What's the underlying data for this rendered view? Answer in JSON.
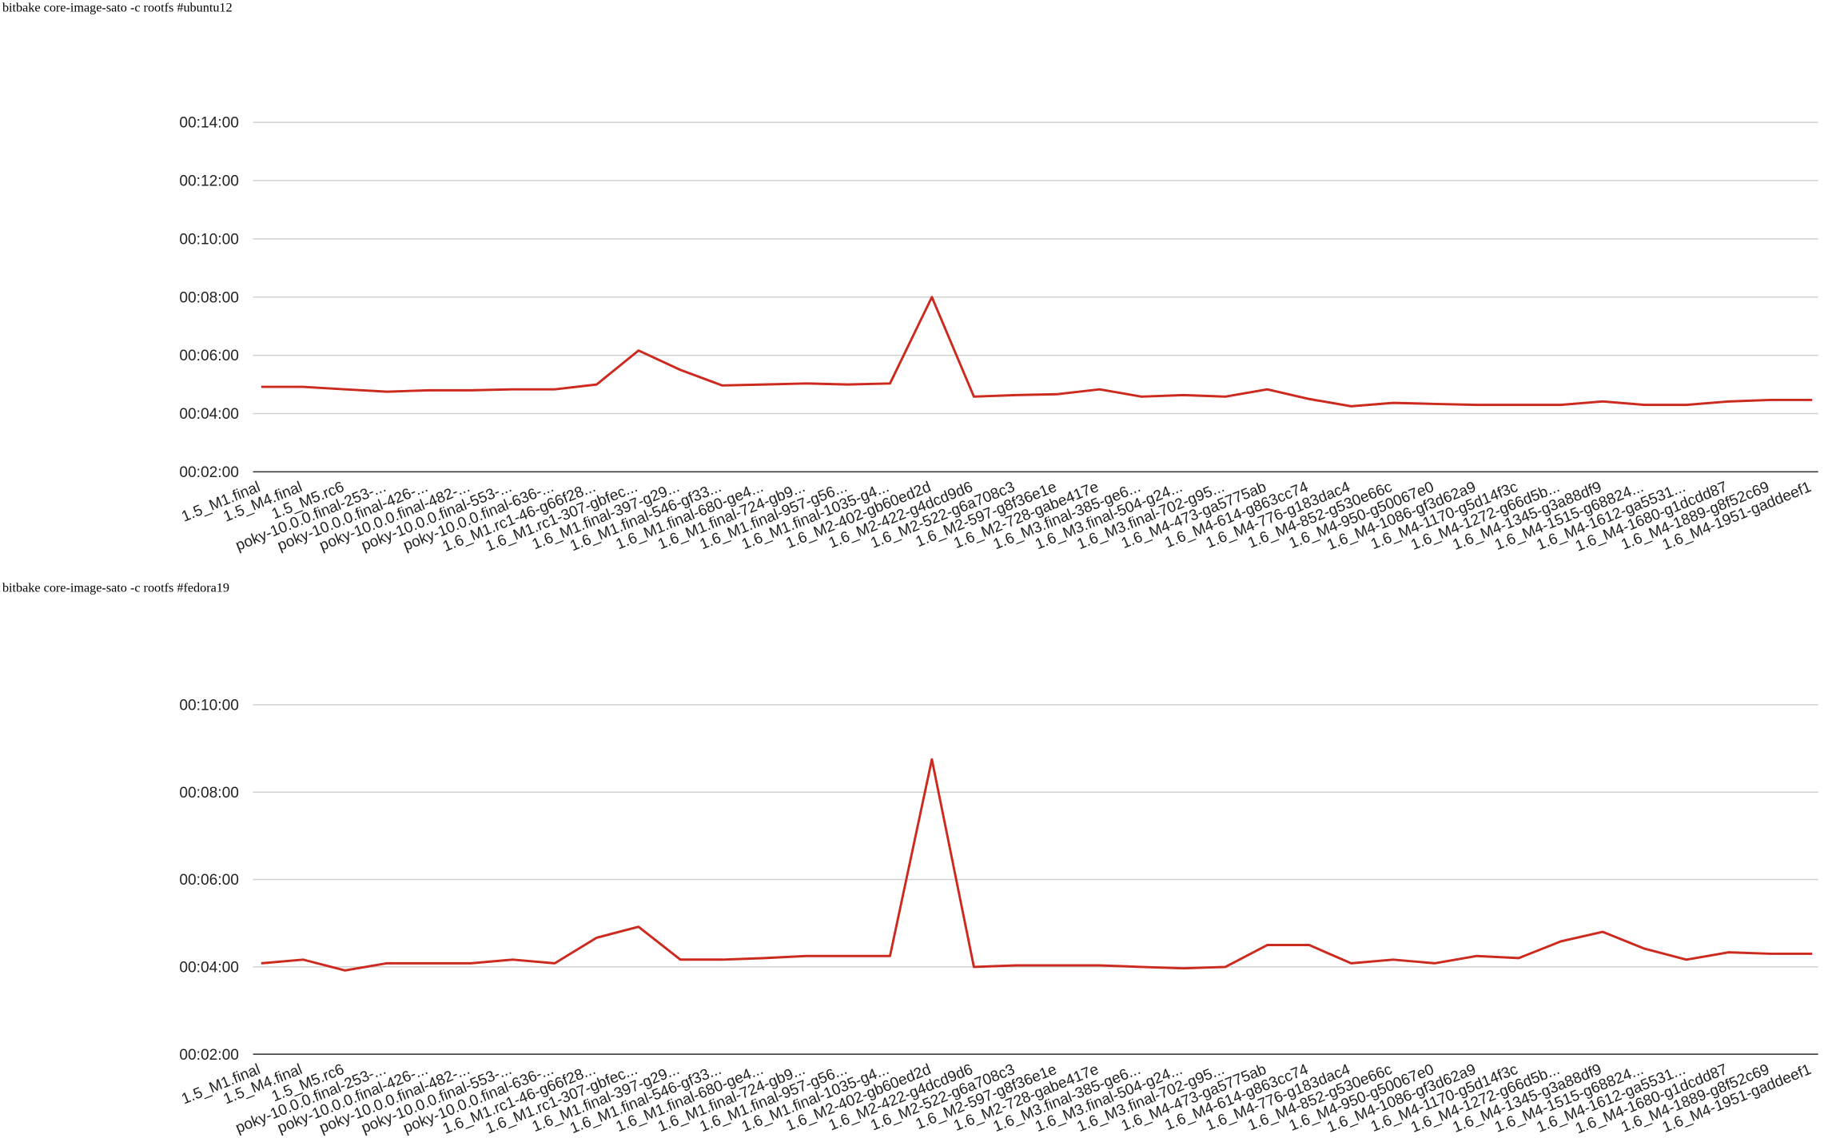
{
  "chart_data": [
    {
      "type": "line",
      "title": "bitbake core-image-sato -c rootfs #ubuntu12",
      "categories": [
        "1.5_M1.final",
        "1.5_M4.final",
        "1.5_M5.rc6",
        "poky-10.0.0.final-253-...",
        "poky-10.0.0.final-426-...",
        "poky-10.0.0.final-482-...",
        "poky-10.0.0.final-553-...",
        "poky-10.0.0.final-636-...",
        "1.6_M1.rc1-46-g66f28...",
        "1.6_M1.rc1-307-gbfec...",
        "1.6_M1.final-397-g29...",
        "1.6_M1.final-546-gf33...",
        "1.6_M1.final-680-ge4...",
        "1.6_M1.final-724-gb9...",
        "1.6_M1.final-957-g56...",
        "1.6_M1.final-1035-g4...",
        "1.6_M2-402-gb60ed2d",
        "1.6_M2-422-g4dcd9d6",
        "1.6_M2-522-g6a708c3",
        "1.6_M2-597-g8f36e1e",
        "1.6_M2-728-gabe417e",
        "1.6_M3.final-385-ge6...",
        "1.6_M3.final-504-g24...",
        "1.6_M3.final-702-g95...",
        "1.6_M4-473-ga5775ab",
        "1.6_M4-614-g863cc74",
        "1.6_M4-776-g183dac4",
        "1.6_M4-852-g530e66c",
        "1.6_M4-950-g50067e0",
        "1.6_M4-1086-gf3d62a9",
        "1.6_M4-1170-g5d14f3c",
        "1.6_M4-1272-g66d5b...",
        "1.6_M4-1345-g3a88df9",
        "1.6_M4-1515-g68824...",
        "1.6_M4-1612-ga5531...",
        "1.6_M4-1680-g1dcdd87",
        "1.6_M4-1889-g8f52c69",
        "1.6_M4-1951-gaddeef1"
      ],
      "values": [
        295,
        295,
        290,
        285,
        288,
        288,
        290,
        290,
        300,
        370,
        330,
        298,
        300,
        302,
        300,
        302,
        480,
        275,
        278,
        280,
        290,
        275,
        278,
        275,
        290,
        270,
        255,
        262,
        260,
        258,
        258,
        258,
        265,
        258,
        258,
        265,
        268,
        268
      ],
      "color": "#cc2a1f",
      "ylim": [
        120,
        840
      ],
      "yticks": [
        {
          "value": 120,
          "label": "00:02:00"
        },
        {
          "value": 240,
          "label": "00:04:00"
        },
        {
          "value": 360,
          "label": "00:06:00"
        },
        {
          "value": 480,
          "label": "00:08:00"
        },
        {
          "value": 600,
          "label": "00:10:00"
        },
        {
          "value": 720,
          "label": "00:12:00"
        },
        {
          "value": 840,
          "label": "00:14:00"
        }
      ],
      "grid": true
    },
    {
      "type": "line",
      "title": "bitbake core-image-sato -c rootfs #fedora19",
      "categories": [
        "1.5_M1.final",
        "1.5_M4.final",
        "1.5_M5.rc6",
        "poky-10.0.0.final-253-...",
        "poky-10.0.0.final-426-...",
        "poky-10.0.0.final-482-...",
        "poky-10.0.0.final-553-...",
        "poky-10.0.0.final-636-...",
        "1.6_M1.rc1-46-g66f28...",
        "1.6_M1.rc1-307-gbfec...",
        "1.6_M1.final-397-g29...",
        "1.6_M1.final-546-gf33...",
        "1.6_M1.final-680-ge4...",
        "1.6_M1.final-724-gb9...",
        "1.6_M1.final-957-g56...",
        "1.6_M1.final-1035-g4...",
        "1.6_M2-402-gb60ed2d",
        "1.6_M2-422-g4dcd9d6",
        "1.6_M2-522-g6a708c3",
        "1.6_M2-597-g8f36e1e",
        "1.6_M2-728-gabe417e",
        "1.6_M3.final-385-ge6...",
        "1.6_M3.final-504-g24...",
        "1.6_M3.final-702-g95...",
        "1.6_M4-473-ga5775ab",
        "1.6_M4-614-g863cc74",
        "1.6_M4-776-g183dac4",
        "1.6_M4-852-g530e66c",
        "1.6_M4-950-g50067e0",
        "1.6_M4-1086-gf3d62a9",
        "1.6_M4-1170-g5d14f3c",
        "1.6_M4-1272-g66d5b...",
        "1.6_M4-1345-g3a88df9",
        "1.6_M4-1515-g68824...",
        "1.6_M4-1612-ga5531...",
        "1.6_M4-1680-g1dcdd87",
        "1.6_M4-1889-g8f52c69",
        "1.6_M4-1951-gaddeef1"
      ],
      "values": [
        245,
        250,
        235,
        245,
        245,
        245,
        250,
        245,
        280,
        295,
        250,
        250,
        252,
        255,
        255,
        255,
        525,
        240,
        242,
        242,
        242,
        240,
        238,
        240,
        270,
        270,
        245,
        250,
        245,
        255,
        252,
        275,
        288,
        265,
        250,
        260,
        258,
        258
      ],
      "color": "#cc2a1f",
      "ylim": [
        120,
        600
      ],
      "yticks": [
        {
          "value": 120,
          "label": "00:02:00"
        },
        {
          "value": 240,
          "label": "00:04:00"
        },
        {
          "value": 360,
          "label": "00:06:00"
        },
        {
          "value": 480,
          "label": "00:08:00"
        },
        {
          "value": 600,
          "label": "00:10:00"
        }
      ],
      "grid": true
    }
  ]
}
